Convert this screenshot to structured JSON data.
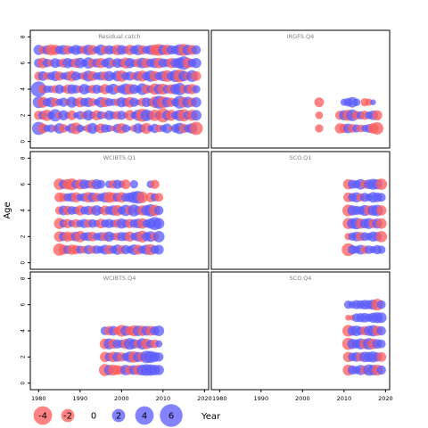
{
  "chart_data": {
    "type": "scatter",
    "subtype": "bubble-residual-grid",
    "ylabel": "Age",
    "xlabel": "Year",
    "xlim": [
      1978,
      2021
    ],
    "ylim": [
      -0.5,
      8.5
    ],
    "x_ticks": [
      1980,
      1990,
      2000,
      2010,
      2020
    ],
    "y_ticks": [
      0,
      2,
      4,
      6,
      8
    ],
    "colors": {
      "negative": "#ff5a5a",
      "positive": "#5a5aff",
      "panel_title": "#808080"
    },
    "legend": {
      "placement": "bottom-left",
      "entries": [
        {
          "label": "-4",
          "value": -4
        },
        {
          "label": "-2",
          "value": -2
        },
        {
          "label": "0",
          "value": 0
        },
        {
          "label": "2",
          "value": 2
        },
        {
          "label": "4",
          "value": 4
        },
        {
          "label": "6",
          "value": 6
        }
      ],
      "axis_label": "Year"
    },
    "panels": [
      {
        "title": "Residual catch",
        "years": [
          1980,
          2018
        ],
        "ages": [
          1,
          2,
          3,
          4,
          5,
          6,
          7
        ],
        "residuals": [
          [
            2.0,
            -1.2,
            0.6,
            0.8,
            -0.5,
            1.3,
            -0.9,
            0.4,
            1.1,
            -1.6,
            0.7,
            0.3,
            -0.8,
            1.4,
            0.5,
            -1.1,
            0.9,
            0.6,
            -0.4,
            1.0,
            -1.3,
            0.8,
            0.2,
            -0.6,
            1.2,
            0.7,
            -1.4,
            0.5,
            1.0,
            -0.7,
            0.6,
            1.1,
            -0.3,
            0.9,
            1.5,
            -1.0,
            0.8,
            1.3,
            -2.0
          ],
          [
            -1.0,
            0.9,
            -1.5,
            0.7,
            1.8,
            -0.6,
            1.2,
            0.5,
            -1.1,
            0.4,
            0.9,
            -0.7,
            1.3,
            0.6,
            -1.2,
            0.8,
            -0.5,
            1.1,
            0.7,
            -0.9,
            1.0,
            0.4,
            -1.3,
            0.6,
            1.4,
            -2.0,
            1.6,
            0.9,
            -1.5,
            0.7,
            -2.3,
            1.1,
            -1.4,
            0.8,
            1.5,
            -1.8,
            0.9,
            -1.4,
            1.3
          ],
          [
            1.6,
            -1.4,
            0.8,
            1.2,
            -0.9,
            0.6,
            1.0,
            -0.5,
            1.4,
            0.7,
            -1.2,
            0.9,
            1.1,
            -0.8,
            0.5,
            1.3,
            -1.1,
            0.8,
            0.6,
            -0.7,
            1.2,
            0.9,
            -1.3,
            1.0,
            0.4,
            -0.9,
            1.1,
            0.7,
            -1.5,
            2.0,
            -1.6,
            1.2,
            -1.0,
            0.8,
            1.9,
            -1.3,
            1.4,
            -1.0,
            1.2
          ],
          [
            2.8,
            -0.9,
            0.7,
            0.6,
            -0.8,
            1.0,
            0.5,
            -1.0,
            1.1,
            0.9,
            -0.6,
            1.3,
            0.7,
            -0.9,
            1.0,
            0.6,
            -1.2,
            0.8,
            1.4,
            -0.7,
            0.9,
            1.5,
            -1.3,
            1.1,
            0.6,
            1.6,
            -1.0,
            0.7,
            -1.5,
            1.2,
            -1.4,
            0.9,
            -1.1,
            1.3,
            1.8,
            -0.9,
            1.0,
            -1.2,
            0.8
          ],
          [
            -0.9,
            1.1,
            -0.7,
            0.8,
            1.2,
            -1.0,
            0.6,
            0.9,
            -1.3,
            1.0,
            0.5,
            -0.8,
            1.4,
            -1.1,
            0.7,
            0.9,
            -1.0,
            1.2,
            0.6,
            1.3,
            -1.5,
            0.8,
            1.0,
            -0.7,
            1.1,
            -1.4,
            0.9,
            1.5,
            -1.2,
            0.8,
            1.2,
            -1.6,
            1.0,
            1.7,
            -1.9,
            1.3,
            -0.8,
            1.6,
            -1.1
          ],
          [
            1.0,
            -1.3,
            0.9,
            -0.6,
            1.1,
            0.7,
            -1.0,
            1.2,
            0.8,
            -1.1,
            1.3,
            0.6,
            1.5,
            -0.9,
            1.0,
            -1.2,
            0.8,
            1.4,
            -0.7,
            1.1,
            0.9,
            -1.4,
            1.2,
            0.7,
            -1.0,
            1.3,
            -1.1,
            0.9,
            1.2,
            -1.3,
            1.0,
            0.8,
            -1.2,
            1.1,
            1.4,
            2.1,
            -1.3,
            0.9,
            1.2
          ],
          [
            1.2,
            -0.8,
            1.0,
            -1.4,
            -1.2,
            0.9,
            1.1,
            -1.0,
            0.7,
            1.2,
            0.8,
            -0.9,
            1.3,
            -1.1,
            0.6,
            1.4,
            -0.9,
            1.0,
            0.8,
            -1.3,
            1.1,
            0.7,
            -1.2,
            0.9,
            1.3,
            -1.0,
            0.8,
            1.1,
            -1.4,
            -1.6,
            1.2,
            -1.3,
            1.0,
            0.9,
            1.5,
            -1.7,
            1.3,
            -1.1,
            1.0
          ]
        ]
      },
      {
        "title": "IRGFS.Q4",
        "years": [
          2004,
          2018
        ],
        "ages": [
          1,
          2,
          3
        ],
        "residuals": [
          [
            -0.8,
            null,
            null,
            null,
            null,
            -1.2,
            -1.0,
            1.1,
            -0.9,
            0.8,
            -0.7,
            0.6,
            0.9,
            -1.3,
            -1.8
          ],
          [
            -0.7,
            null,
            null,
            null,
            null,
            -1.0,
            1.2,
            -1.4,
            1.6,
            -0.9,
            0.8,
            -1.0,
            0.7,
            1.1,
            -1.2
          ],
          [
            -1.1,
            null,
            null,
            null,
            null,
            null,
            0.6,
            0.9,
            1.3,
            0.7,
            null,
            -0.8,
            -0.6,
            0.4,
            null
          ]
        ]
      },
      {
        "title": "WCIBTS.Q1",
        "years": [
          1985,
          2009
        ],
        "ages": [
          1,
          2,
          3,
          4,
          5,
          6
        ],
        "residuals": [
          [
            -1.8,
            -1.1,
            0.9,
            -1.2,
            -1.0,
            0.8,
            -0.7,
            1.0,
            -0.8,
            0.9,
            0.7,
            1.1,
            -1.0,
            0.8,
            1.2,
            -0.9,
            1.0,
            0.7,
            1.3,
            -1.1,
            0.8,
            1.2,
            -1.4,
            0.9,
            1.1
          ],
          [
            -1.3,
            1.0,
            -1.2,
            -0.9,
            1.1,
            -1.5,
            0.8,
            1.0,
            -1.1,
            0.7,
            0.9,
            -1.0,
            1.2,
            0.6,
            -0.8,
            1.0,
            0.9,
            -1.2,
            0.7,
            1.1,
            -1.6,
            1.0,
            1.3,
            -0.9,
            1.5
          ],
          [
            -1.4,
            0.8,
            -1.0,
            0.6,
            -0.9,
            0.7,
            1.0,
            -0.8,
            0.9,
            0.6,
            -1.1,
            0.8,
            1.0,
            0.7,
            -0.9,
            1.2,
            0.8,
            -1.0,
            0.9,
            1.1,
            -1.3,
            0.8,
            1.2,
            2.0,
            1.4
          ],
          [
            -0.8,
            1.1,
            -1.0,
            0.9,
            0.7,
            -1.2,
            0.8,
            1.0,
            -0.9,
            1.3,
            0.6,
            -1.1,
            0.9,
            1.2,
            -1.4,
            0.8,
            1.5,
            -1.0,
            1.7,
            0.9,
            -1.2,
            1.3,
            1.8,
            -1.5,
            1.0
          ],
          [
            -1.1,
            -0.9,
            0.8,
            1.0,
            -1.2,
            0.7,
            0.9,
            -1.3,
            1.1,
            -1.0,
            0.8,
            1.2,
            -1.4,
            -1.1,
            1.0,
            -1.3,
            0.9,
            1.1,
            1.6,
            1.9,
            -1.5,
            null,
            -1.1,
            0.8,
            -0.9
          ],
          [
            -1.5,
            1.0,
            -1.3,
            -1.6,
            0.9,
            -1.2,
            1.1,
            0.8,
            -1.0,
            1.2,
            0.9,
            null,
            0.7,
            -0.9,
            1.0,
            0.6,
            -1.1,
            null,
            0.8,
            null,
            null,
            null,
            0.7,
            -1.0,
            null
          ]
        ]
      },
      {
        "title": "SCO.Q1",
        "years": [
          2011,
          2019
        ],
        "ages": [
          1,
          2,
          3,
          4,
          5,
          6
        ],
        "residuals": [
          [
            -1.9,
            1.0,
            0.7,
            1.1,
            -0.8,
            0.9,
            0.6,
            1.0,
            0.8
          ],
          [
            -0.6,
            0.8,
            1.1,
            -1.0,
            0.9,
            0.7,
            1.2,
            1.0,
            -1.5
          ],
          [
            -1.4,
            1.3,
            1.6,
            -1.2,
            1.1,
            1.4,
            -1.0,
            1.2,
            -1.3
          ],
          [
            -1.6,
            1.2,
            1.0,
            0.9,
            1.4,
            -1.1,
            1.3,
            1.5,
            -1.2
          ],
          [
            -1.1,
            0.9,
            1.2,
            -0.8,
            1.0,
            0.7,
            1.3,
            1.1,
            0.9
          ],
          [
            -1.2,
            1.0,
            0.8,
            1.3,
            -0.9,
            1.1,
            1.4,
            1.2,
            -1.5
          ]
        ]
      },
      {
        "title": "WCIBTS.Q4",
        "years": [
          1996,
          2009
        ],
        "ages": [
          1,
          2,
          3,
          4
        ],
        "residuals": [
          [
            -1.7,
            1.2,
            -1.4,
            -1.1,
            -0.9,
            1.3,
            -1.0,
            1.1,
            -1.2,
            1.4,
            1.6,
            1.5,
            1.3,
            1.2
          ],
          [
            -1.2,
            0.9,
            -1.3,
            1.1,
            -1.0,
            0.8,
            1.4,
            -1.5,
            1.2,
            -1.1,
            1.8,
            1.7,
            1.2,
            1.0
          ],
          [
            -1.3,
            1.4,
            -1.1,
            1.0,
            0.8,
            -1.2,
            1.6,
            1.1,
            -0.9,
            1.5,
            -1.3,
            0.8,
            -0.9,
            0.6
          ],
          [
            0.9,
            -1.0,
            1.1,
            -0.8,
            -1.6,
            1.2,
            -1.0,
            -1.4,
            1.3,
            -1.2,
            1.1,
            -1.1,
            1.0,
            1.3
          ]
        ]
      },
      {
        "title": "SCO.Q4",
        "years": [
          2011,
          2019
        ],
        "ages": [
          1,
          2,
          3,
          4,
          5,
          6
        ],
        "residuals": [
          [
            -1.4,
            1.0,
            0.8,
            1.2,
            -0.9,
            1.5,
            1.3,
            -1.4,
            1.0
          ],
          [
            -1.2,
            0.9,
            1.1,
            -1.0,
            1.3,
            1.2,
            1.4,
            1.0,
            -1.1
          ],
          [
            -1.7,
            1.2,
            1.0,
            1.4,
            -1.2,
            1.6,
            -1.3,
            1.1,
            0.9
          ],
          [
            -1.6,
            1.1,
            1.3,
            0.9,
            -1.0,
            1.2,
            1.5,
            -1.2,
            1.0
          ],
          [
            -0.4,
            -0.4,
            0.9,
            1.0,
            1.1,
            0.8,
            1.2,
            1.4,
            1.3
          ],
          [
            0.8,
            0.7,
            1.0,
            0.9,
            1.1,
            1.0,
            1.2,
            -1.6,
            0.9
          ]
        ]
      }
    ]
  }
}
